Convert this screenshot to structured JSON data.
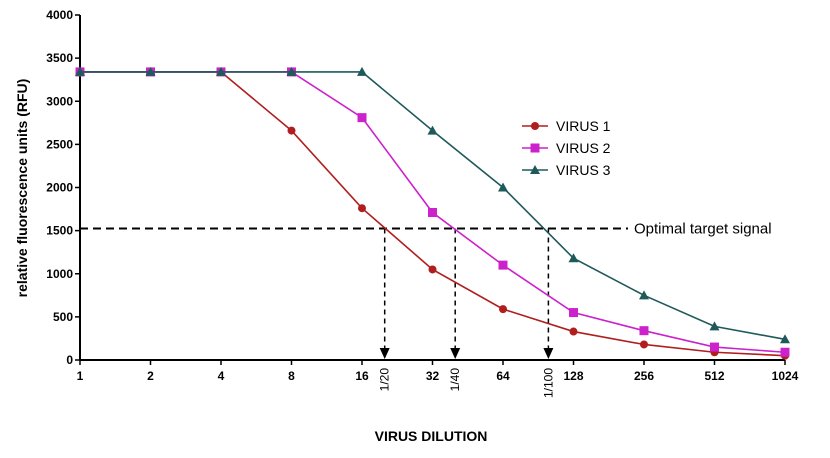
{
  "chart_data": {
    "type": "line",
    "title": "",
    "xlabel": "VIRUS DILUTION",
    "ylabel": "relative fluorescence units (RFU)",
    "x_scale": "log2",
    "x": [
      1,
      2,
      4,
      8,
      16,
      32,
      64,
      128,
      256,
      512,
      1024
    ],
    "x_tick_labels": [
      "1",
      "2",
      "4",
      "8",
      "16",
      "32",
      "64",
      "128",
      "256",
      "512",
      "1024"
    ],
    "xlim": [
      1,
      1024
    ],
    "ylim": [
      0,
      4000
    ],
    "y_ticks": [
      0,
      500,
      1000,
      1500,
      2000,
      2500,
      3000,
      3500,
      4000
    ],
    "grid": false,
    "legend_position": "right",
    "series": [
      {
        "name": "VIRUS 1",
        "color": "#b01e1e",
        "marker": "circle",
        "values": [
          3340,
          3340,
          3340,
          2660,
          1760,
          1050,
          590,
          330,
          180,
          90,
          50
        ]
      },
      {
        "name": "VIRUS 2",
        "color": "#cc22cc",
        "marker": "square",
        "values": [
          3340,
          3340,
          3340,
          3340,
          2810,
          1710,
          1100,
          550,
          340,
          150,
          90
        ]
      },
      {
        "name": "VIRUS 3",
        "color": "#1e5a5a",
        "marker": "triangle",
        "values": [
          3340,
          3340,
          3340,
          3340,
          3340,
          2660,
          2000,
          1180,
          750,
          390,
          240
        ]
      }
    ],
    "reference_line": {
      "y": 1525,
      "label": "Optimal target signal"
    },
    "markers": [
      {
        "x": 20,
        "label": "1/20"
      },
      {
        "x": 40,
        "label": "1/40"
      },
      {
        "x": 100,
        "label": "1/100"
      }
    ]
  }
}
